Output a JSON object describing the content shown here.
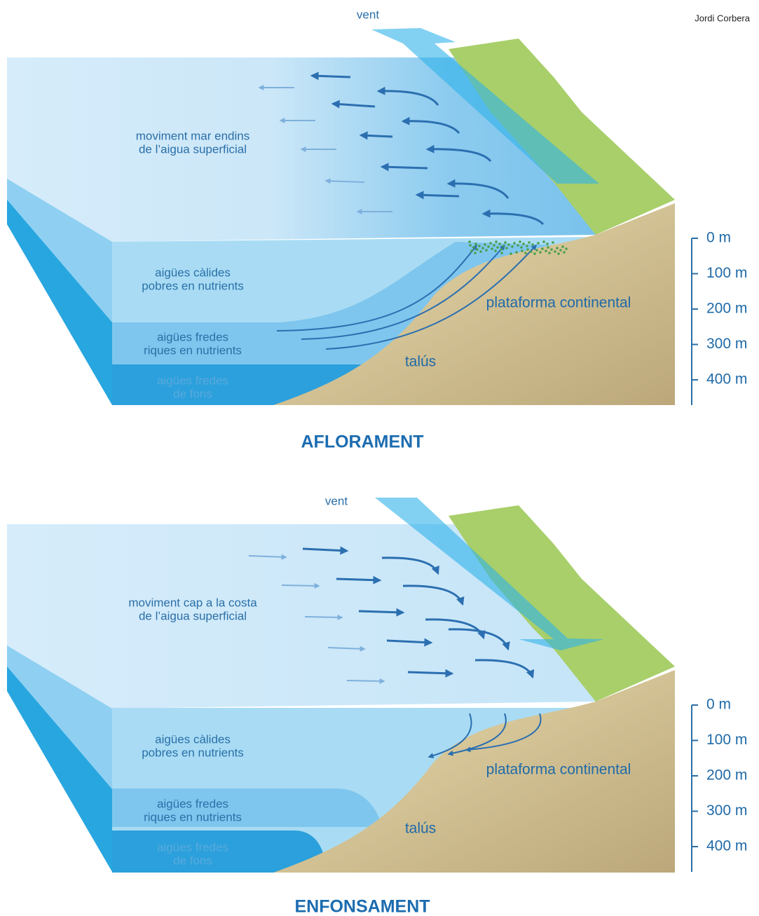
{
  "credit": "Jordi Corbera",
  "panels": [
    {
      "wind": "vent",
      "surface_label": [
        "moviment mar endins",
        "de l’aigua superficial"
      ],
      "layers": [
        [
          "aigües càlides",
          "pobres en nutrients"
        ],
        [
          "aigües fredes",
          "riques en nutrients"
        ],
        [
          "aigües fredes",
          "de fons"
        ]
      ],
      "shelf": "plataforma continental",
      "slope": "talús",
      "depth_scale": [
        "0 m",
        "100 m",
        "200 m",
        "300 m",
        "400 m"
      ],
      "title": "AFLORAMENT"
    },
    {
      "wind": "vent",
      "surface_label": [
        "moviment cap a la costa",
        "de l’aigua superficial"
      ],
      "layers": [
        [
          "aigües càlides",
          "pobres en nutrients"
        ],
        [
          "aigües fredes",
          "riques en nutrients"
        ],
        [
          "aigües fredes",
          "de fons"
        ]
      ],
      "shelf": "plataforma continental",
      "slope": "talús",
      "depth_scale": [
        "0 m",
        "100 m",
        "200 m",
        "300 m",
        "400 m"
      ],
      "title": "ENFONSAMENT"
    }
  ]
}
